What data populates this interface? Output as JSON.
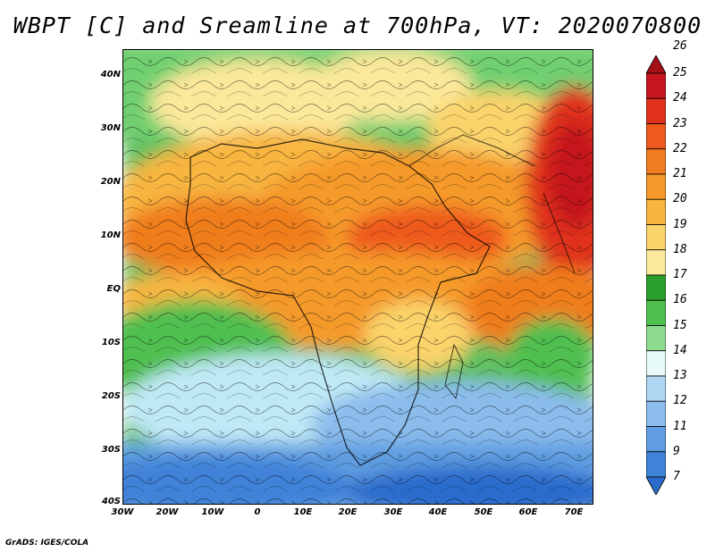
{
  "title": "WBPT [C] and Sreamline at 700hPa, VT: 2020070800",
  "credit": "GrADS: IGES/COLA",
  "map": {
    "lat_labels": [
      "40N",
      "30N",
      "20N",
      "10N",
      "EQ",
      "10S",
      "20S",
      "30S",
      "40S"
    ],
    "lon_labels": [
      "30W",
      "20W",
      "10W",
      "0",
      "10E",
      "20E",
      "30E",
      "40E",
      "50E",
      "60E",
      "70E"
    ],
    "colorbar": {
      "labels": [
        "26",
        "25",
        "24",
        "23",
        "22",
        "21",
        "20",
        "19",
        "18",
        "17",
        "16",
        "15",
        "14",
        "13",
        "12",
        "11",
        "9",
        "7"
      ],
      "colors": [
        "#a50f15",
        "#c4161c",
        "#e0311b",
        "#ee5a1d",
        "#f07d1f",
        "#f59a2a",
        "#f8b53f",
        "#fad36b",
        "#fbe89a",
        "#2ca02c",
        "#4fbf4f",
        "#8fdc8f",
        "#e8fafa",
        "#b0d8f5",
        "#8bbcec",
        "#5f9de0",
        "#3f82d8",
        "#2b6ccc"
      ]
    }
  }
}
